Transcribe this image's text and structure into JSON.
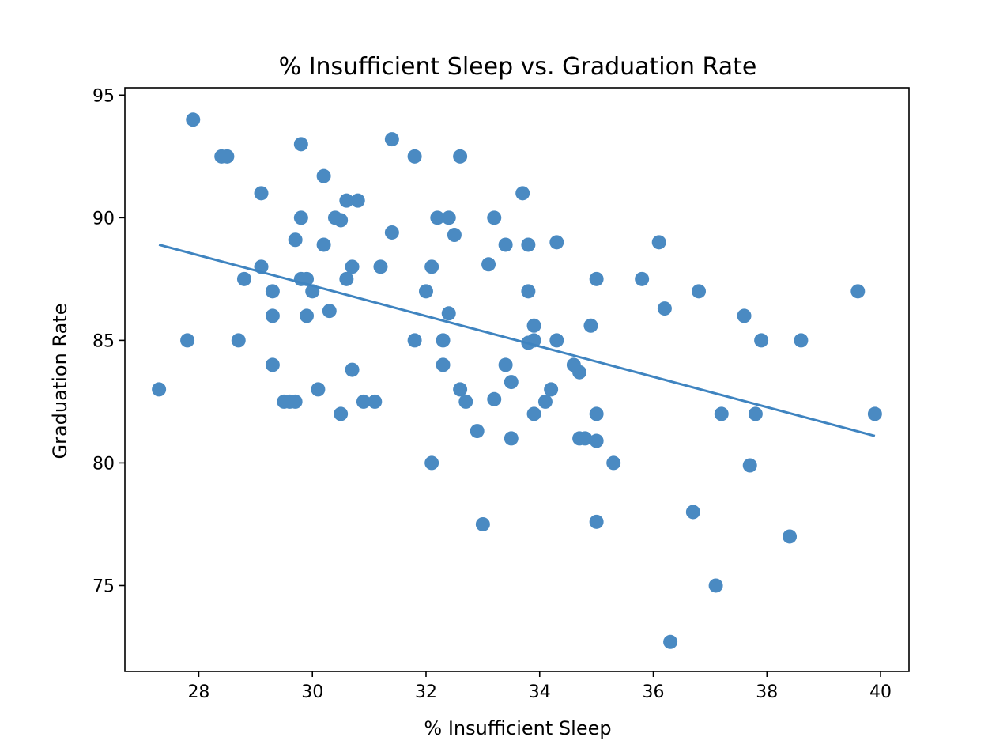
{
  "chart_data": {
    "type": "scatter",
    "title": "% Insufficient Sleep vs. Graduation Rate",
    "xlabel": "% Insufficient Sleep",
    "ylabel": "Graduation Rate",
    "xlim": [
      26.7,
      40.5
    ],
    "ylim": [
      71.5,
      95.3
    ],
    "xticks": [
      28,
      30,
      32,
      34,
      36,
      38,
      40
    ],
    "yticks": [
      75,
      80,
      85,
      90,
      95
    ],
    "grid": false,
    "colors": {
      "points": "#4a8ac2",
      "trendline": "#3f84c0",
      "axes": "#000000"
    },
    "trendline": {
      "x": [
        27.3,
        39.9
      ],
      "y": [
        88.9,
        81.1
      ]
    },
    "points": [
      [
        27.3,
        83.0
      ],
      [
        27.8,
        85.0
      ],
      [
        27.9,
        94.0
      ],
      [
        28.4,
        92.5
      ],
      [
        28.5,
        92.5
      ],
      [
        28.7,
        85.0
      ],
      [
        28.8,
        87.5
      ],
      [
        29.1,
        91.0
      ],
      [
        29.1,
        88.0
      ],
      [
        29.3,
        87.0
      ],
      [
        29.3,
        86.0
      ],
      [
        29.3,
        84.0
      ],
      [
        29.5,
        82.5
      ],
      [
        29.6,
        82.5
      ],
      [
        29.7,
        82.5
      ],
      [
        29.7,
        89.1
      ],
      [
        29.8,
        93.0
      ],
      [
        29.8,
        90.0
      ],
      [
        29.8,
        87.5
      ],
      [
        29.9,
        87.5
      ],
      [
        29.9,
        86.0
      ],
      [
        30.0,
        87.0
      ],
      [
        30.1,
        83.0
      ],
      [
        30.2,
        91.7
      ],
      [
        30.2,
        88.9
      ],
      [
        30.3,
        86.2
      ],
      [
        30.4,
        90.0
      ],
      [
        30.5,
        89.9
      ],
      [
        30.5,
        82.0
      ],
      [
        30.6,
        90.7
      ],
      [
        30.6,
        87.5
      ],
      [
        30.7,
        88.0
      ],
      [
        30.7,
        83.8
      ],
      [
        30.8,
        90.7
      ],
      [
        30.9,
        82.5
      ],
      [
        31.1,
        82.5
      ],
      [
        31.2,
        88.0
      ],
      [
        31.4,
        93.2
      ],
      [
        31.4,
        89.4
      ],
      [
        31.8,
        92.5
      ],
      [
        31.8,
        85.0
      ],
      [
        32.0,
        87.0
      ],
      [
        32.1,
        88.0
      ],
      [
        32.1,
        80.0
      ],
      [
        32.2,
        90.0
      ],
      [
        32.3,
        85.0
      ],
      [
        32.3,
        84.0
      ],
      [
        32.4,
        90.0
      ],
      [
        32.4,
        86.1
      ],
      [
        32.5,
        89.3
      ],
      [
        32.6,
        92.5
      ],
      [
        32.6,
        83.0
      ],
      [
        32.7,
        82.5
      ],
      [
        32.9,
        81.3
      ],
      [
        33.0,
        77.5
      ],
      [
        33.1,
        88.1
      ],
      [
        33.2,
        90.0
      ],
      [
        33.2,
        82.6
      ],
      [
        33.4,
        88.9
      ],
      [
        33.4,
        84.0
      ],
      [
        33.5,
        83.3
      ],
      [
        33.5,
        81.0
      ],
      [
        33.7,
        91.0
      ],
      [
        33.8,
        88.9
      ],
      [
        33.8,
        87.0
      ],
      [
        33.8,
        84.9
      ],
      [
        33.9,
        85.6
      ],
      [
        33.9,
        85.0
      ],
      [
        33.9,
        82.0
      ],
      [
        34.1,
        82.5
      ],
      [
        34.2,
        83.0
      ],
      [
        34.3,
        89.0
      ],
      [
        34.3,
        85.0
      ],
      [
        34.6,
        84.0
      ],
      [
        34.7,
        83.7
      ],
      [
        34.7,
        81.0
      ],
      [
        34.8,
        81.0
      ],
      [
        34.9,
        85.6
      ],
      [
        35.0,
        87.5
      ],
      [
        35.0,
        82.0
      ],
      [
        35.0,
        80.9
      ],
      [
        35.0,
        77.6
      ],
      [
        35.3,
        80.0
      ],
      [
        35.8,
        87.5
      ],
      [
        36.1,
        89.0
      ],
      [
        36.2,
        86.3
      ],
      [
        36.3,
        72.7
      ],
      [
        36.7,
        78.0
      ],
      [
        36.8,
        87.0
      ],
      [
        37.1,
        75.0
      ],
      [
        37.2,
        82.0
      ],
      [
        37.6,
        86.0
      ],
      [
        37.7,
        79.9
      ],
      [
        37.8,
        82.0
      ],
      [
        37.9,
        85.0
      ],
      [
        38.4,
        77.0
      ],
      [
        38.6,
        85.0
      ],
      [
        39.6,
        87.0
      ],
      [
        39.9,
        82.0
      ]
    ]
  }
}
